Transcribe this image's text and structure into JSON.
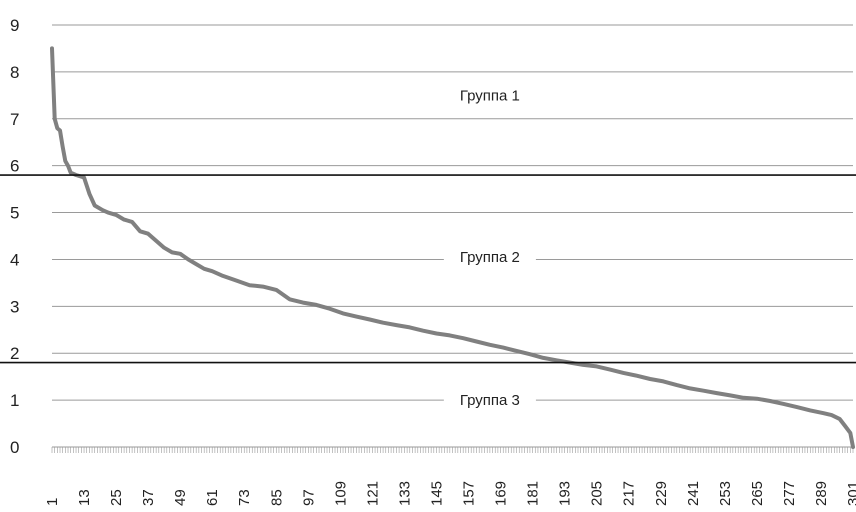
{
  "chart_data": {
    "type": "line",
    "title": "",
    "xlabel": "",
    "ylabel": "",
    "ylim": [
      0,
      9
    ],
    "xlim": [
      1,
      301
    ],
    "grid": "horizontal",
    "y_ticks": [
      0,
      1,
      2,
      3,
      4,
      5,
      6,
      7,
      8,
      9
    ],
    "x_tick_labels": [
      "1",
      "13",
      "25",
      "37",
      "49",
      "61",
      "73",
      "85",
      "97",
      "109",
      "121",
      "133",
      "145",
      "157",
      "169",
      "181",
      "193",
      "205",
      "217",
      "229",
      "241",
      "253",
      "265",
      "277",
      "289",
      "301"
    ],
    "series": [
      {
        "color": "#808080",
        "x": [
          1,
          2,
          3,
          4,
          5,
          6,
          7,
          8,
          10,
          13,
          15,
          17,
          20,
          22,
          25,
          28,
          31,
          34,
          37,
          40,
          43,
          46,
          49,
          52,
          55,
          58,
          61,
          65,
          70,
          75,
          80,
          85,
          90,
          95,
          100,
          105,
          110,
          115,
          120,
          125,
          130,
          135,
          140,
          145,
          150,
          155,
          160,
          165,
          170,
          175,
          180,
          185,
          190,
          195,
          200,
          205,
          210,
          215,
          220,
          225,
          230,
          235,
          240,
          245,
          250,
          255,
          260,
          265,
          270,
          275,
          280,
          285,
          290,
          293,
          296,
          298,
          300,
          301
        ],
        "values": [
          8.5,
          7.0,
          6.8,
          6.75,
          6.4,
          6.1,
          6.0,
          5.85,
          5.8,
          5.75,
          5.4,
          5.15,
          5.05,
          5.0,
          4.95,
          4.85,
          4.8,
          4.6,
          4.55,
          4.4,
          4.25,
          4.15,
          4.12,
          4.0,
          3.9,
          3.8,
          3.75,
          3.65,
          3.55,
          3.45,
          3.42,
          3.35,
          3.15,
          3.08,
          3.03,
          2.95,
          2.85,
          2.78,
          2.72,
          2.65,
          2.6,
          2.55,
          2.48,
          2.42,
          2.38,
          2.32,
          2.25,
          2.18,
          2.12,
          2.05,
          1.98,
          1.9,
          1.85,
          1.8,
          1.75,
          1.72,
          1.65,
          1.58,
          1.52,
          1.45,
          1.4,
          1.32,
          1.25,
          1.2,
          1.15,
          1.1,
          1.05,
          1.03,
          0.98,
          0.92,
          0.85,
          0.78,
          0.72,
          0.68,
          0.6,
          0.45,
          0.3,
          0.0
        ]
      }
    ],
    "thresholds": [
      5.8,
      1.8
    ],
    "annotations": [
      {
        "text": "Группа 1",
        "x": 165,
        "y": 7.5
      },
      {
        "text": "Группа 2",
        "x": 165,
        "y": 4.05
      },
      {
        "text": "Группа 3",
        "x": 165,
        "y": 1.0
      }
    ]
  }
}
